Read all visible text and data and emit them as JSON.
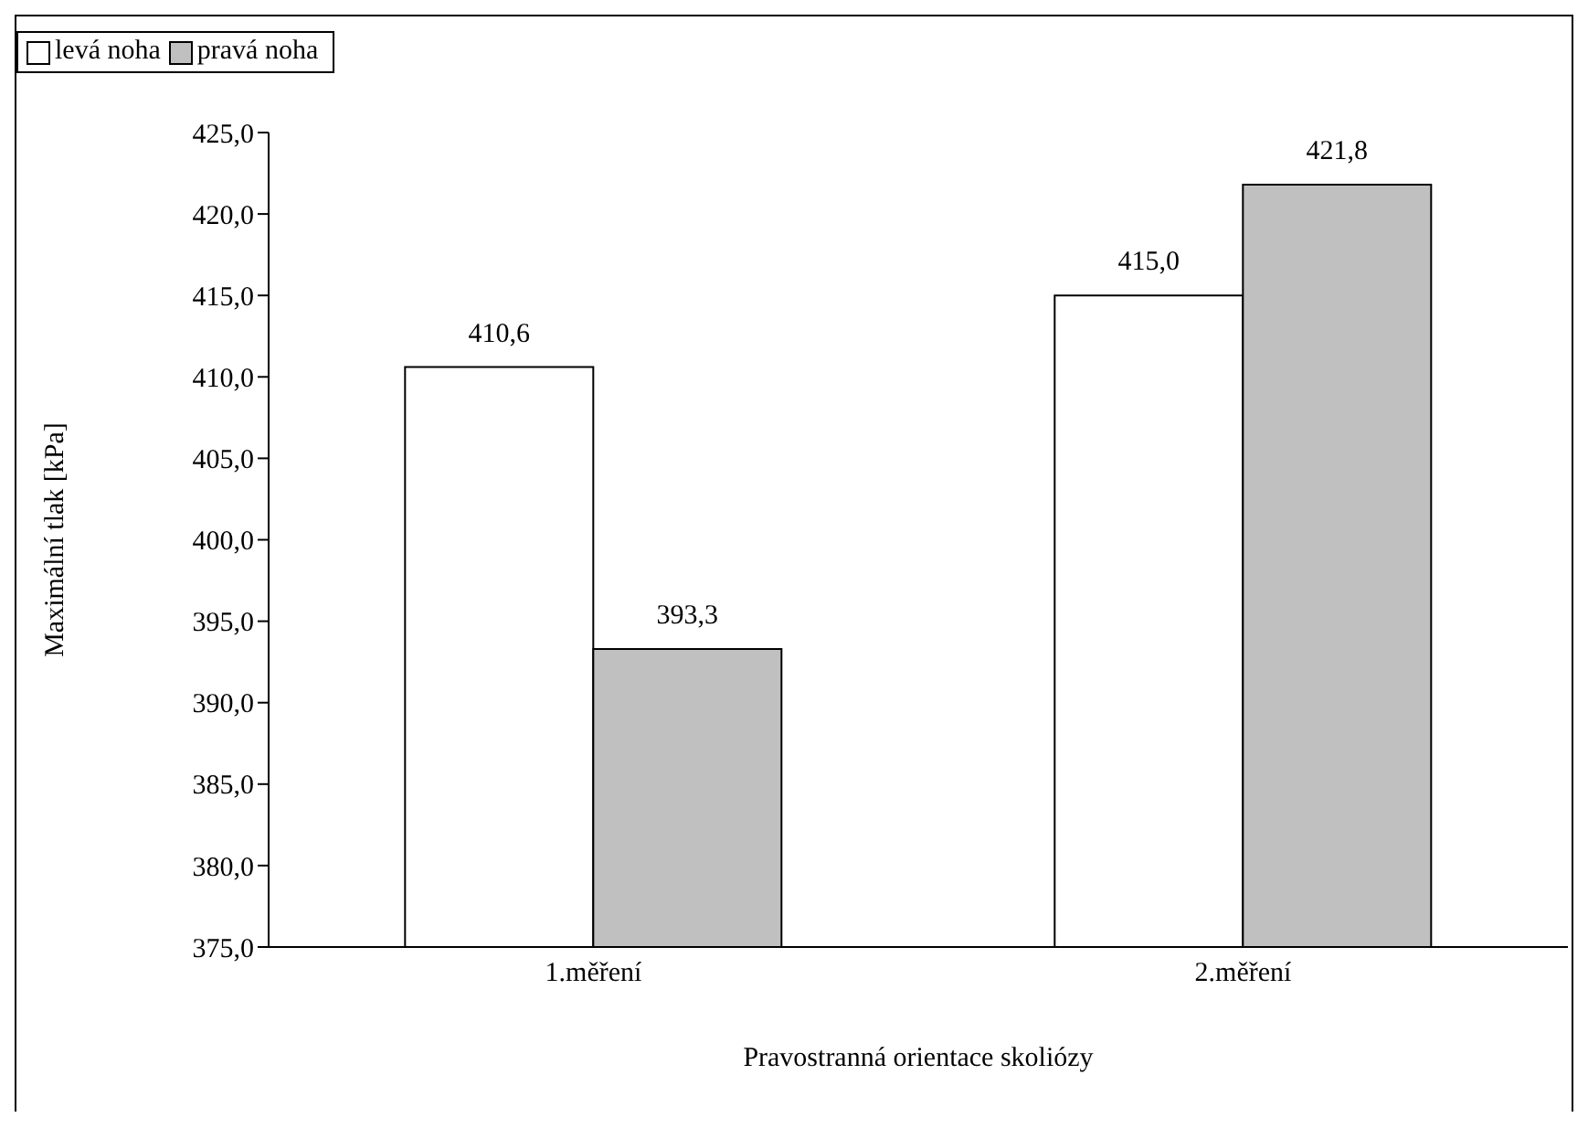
{
  "chart_data": {
    "type": "bar",
    "xlabel": "Pravostranná orientace skoliózy",
    "ylabel": "Maximální tlak [kPa]",
    "categories": [
      "1.měření",
      "2.měření"
    ],
    "series": [
      {
        "name": "levá noha",
        "color": "#ffffff",
        "values": [
          410.6,
          415.0
        ],
        "value_labels": [
          "410,6",
          "415,0"
        ]
      },
      {
        "name": "pravá noha",
        "color": "#c0c0c0",
        "values": [
          393.3,
          421.8
        ],
        "value_labels": [
          "393,3",
          "421,8"
        ]
      }
    ],
    "ylim": [
      375,
      425
    ],
    "yticks": [
      {
        "value": 375,
        "label": "375,0"
      },
      {
        "value": 380,
        "label": "380,0"
      },
      {
        "value": 385,
        "label": "385,0"
      },
      {
        "value": 390,
        "label": "390,0"
      },
      {
        "value": 395,
        "label": "395,0"
      },
      {
        "value": 400,
        "label": "400,0"
      },
      {
        "value": 405,
        "label": "405,0"
      },
      {
        "value": 410,
        "label": "410,0"
      },
      {
        "value": 415,
        "label": "415,0"
      },
      {
        "value": 420,
        "label": "420,0"
      },
      {
        "value": 425,
        "label": "425,0"
      }
    ],
    "grid": false,
    "legend": "top"
  }
}
